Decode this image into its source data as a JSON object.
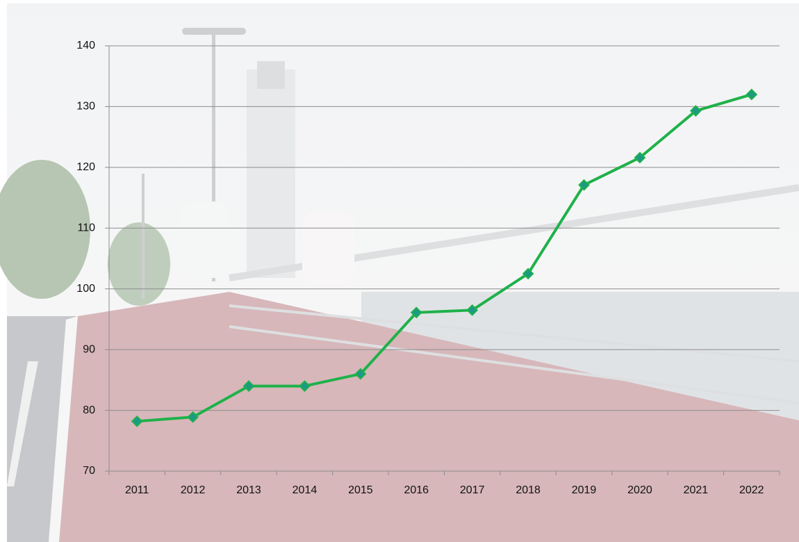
{
  "chart_data": {
    "type": "line",
    "categories": [
      "2011",
      "2012",
      "2013",
      "2014",
      "2015",
      "2016",
      "2017",
      "2018",
      "2019",
      "2020",
      "2021",
      "2022"
    ],
    "values": [
      78.2,
      78.9,
      84.0,
      84.0,
      86.0,
      96.1,
      96.5,
      102.5,
      117.1,
      121.6,
      129.3,
      132.0
    ],
    "color": "#1fb14a",
    "marker_color": "#1c9a86",
    "ylim": [
      70,
      140
    ],
    "yticks": [
      70,
      80,
      90,
      100,
      110,
      120,
      130,
      140
    ],
    "grid": true
  }
}
